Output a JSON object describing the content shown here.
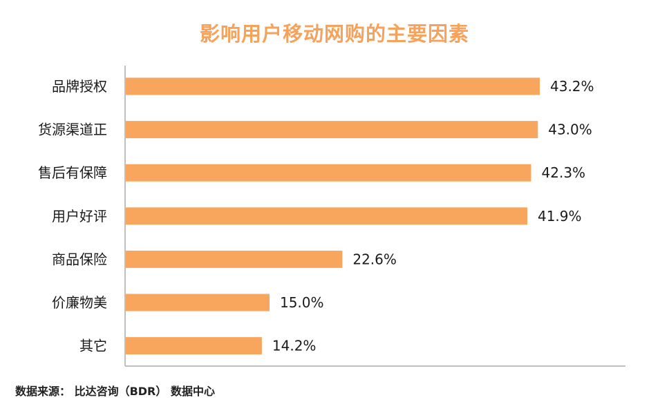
{
  "chart_data": {
    "type": "bar",
    "orientation": "horizontal",
    "title": "影响用户移动网购的主要因素",
    "categories": [
      "品牌授权",
      "货源渠道正",
      "售后有保障",
      "用户好评",
      "商品保险",
      "价廉物美",
      "其它"
    ],
    "values": [
      43.2,
      43.0,
      42.3,
      41.9,
      22.6,
      15.0,
      14.2
    ],
    "value_labels": [
      "43.2%",
      "43.0%",
      "42.3%",
      "41.9%",
      "22.6%",
      "15.0%",
      "14.2%"
    ],
    "xlabel": "",
    "ylabel": "",
    "xlim": [
      0,
      50
    ],
    "grid": false,
    "bar_color": "#F8A65E",
    "title_color": "#F5A25C",
    "axis_color": "#BFBFBF"
  },
  "source": "数据来源： 比达咨询（BDR） 数据中心"
}
